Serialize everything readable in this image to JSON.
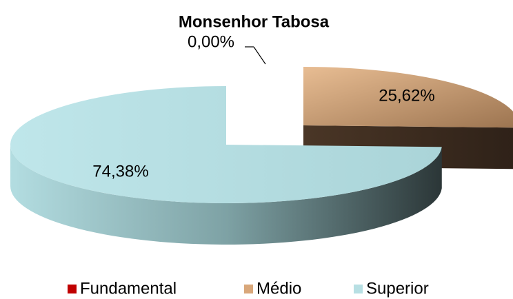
{
  "chart_data": {
    "type": "pie3d",
    "title": "Monsenhor Tabosa",
    "categories": [
      "Fundamental",
      "Médio",
      "Superior"
    ],
    "values": [
      0,
      25.62,
      74.38
    ],
    "value_labels": [
      "0,00%",
      "25,62%",
      "74,38%"
    ],
    "colors": [
      "#c00000",
      "#d9a77a",
      "#b7dfe3"
    ],
    "legend": "bottom"
  }
}
